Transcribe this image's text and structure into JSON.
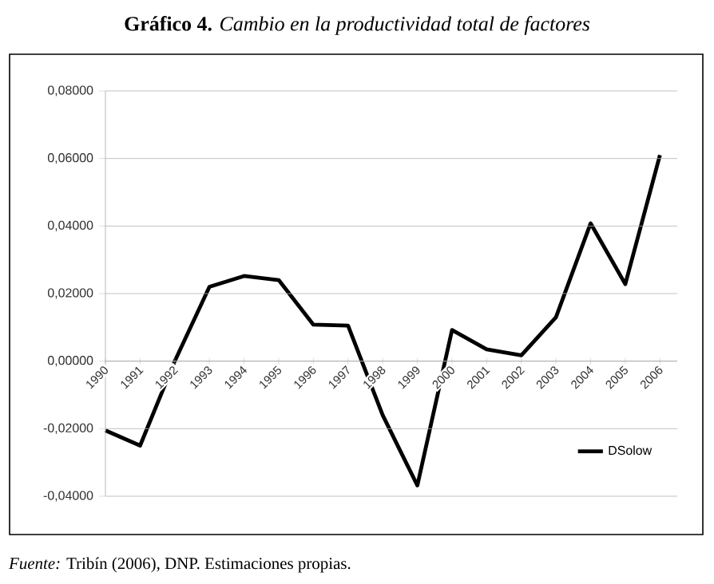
{
  "chart_data": {
    "type": "line",
    "title": "**Gráfico 4.** *Cambio en la productividad total de factores*",
    "categories": [
      "1990",
      "1991",
      "1992",
      "1993",
      "1994",
      "1995",
      "1996",
      "1997",
      "1998",
      "1999",
      "2000",
      "2001",
      "2002",
      "2003",
      "2004",
      "2005",
      "2006"
    ],
    "series": [
      {
        "name": "DSolow",
        "color": "#000000",
        "values": [
          -0.0205,
          -0.025,
          0.0,
          0.022,
          0.0252,
          0.024,
          0.0108,
          0.0105,
          -0.016,
          -0.0368,
          0.0092,
          0.0035,
          0.0017,
          0.013,
          0.0408,
          0.0228,
          0.061
        ]
      }
    ],
    "ylim": [
      -0.04,
      0.08
    ],
    "yticks": [
      {
        "value": -0.04,
        "label": "-0,04000"
      },
      {
        "value": -0.02,
        "label": "-0,02000"
      },
      {
        "value": 0,
        "label": "0,00000"
      },
      {
        "value": 0.02,
        "label": "0,02000"
      },
      {
        "value": 0.04,
        "label": "0,04000"
      },
      {
        "value": 0.06,
        "label": "0,06000"
      },
      {
        "value": 0.08,
        "label": "0,08000"
      }
    ],
    "grid": "y",
    "legend": "bottom right",
    "marker": "none",
    "line_style": "solid",
    "annotations": [
      "*Fuente:* Tribín (2006), DNP. Estimaciones propias."
    ]
  }
}
